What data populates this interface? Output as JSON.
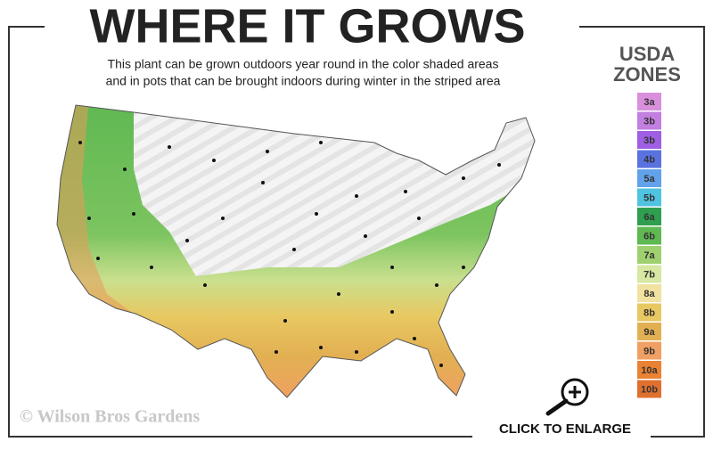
{
  "header": {
    "title": "WHERE IT GROWS",
    "subtitle": [
      "This plant can be grown outdoors year round in the color shaded areas",
      "and in pots that can be brought indoors during winter in the striped area"
    ]
  },
  "legend": {
    "title": [
      "USDA",
      "ZONES"
    ],
    "zones": [
      {
        "label": "3a",
        "color": "#d990dc"
      },
      {
        "label": "3b",
        "color": "#c27fe0"
      },
      {
        "label": "3b",
        "color": "#9f5fe3"
      },
      {
        "label": "4b",
        "color": "#5a72e0"
      },
      {
        "label": "5a",
        "color": "#62a2ea"
      },
      {
        "label": "5b",
        "color": "#4fc3df"
      },
      {
        "label": "6a",
        "color": "#2f9f4f"
      },
      {
        "label": "6b",
        "color": "#5fb852"
      },
      {
        "label": "7a",
        "color": "#9fd06f"
      },
      {
        "label": "7b",
        "color": "#d6e8a2"
      },
      {
        "label": "8a",
        "color": "#f2e2a2"
      },
      {
        "label": "8b",
        "color": "#e8c862"
      },
      {
        "label": "9a",
        "color": "#e2b052"
      },
      {
        "label": "9b",
        "color": "#f0a062"
      },
      {
        "label": "10a",
        "color": "#e98232"
      },
      {
        "label": "10b",
        "color": "#e07030"
      }
    ]
  },
  "copyright": "© Wilson Bros Gardens",
  "action": "CLICK TO ENLARGE"
}
